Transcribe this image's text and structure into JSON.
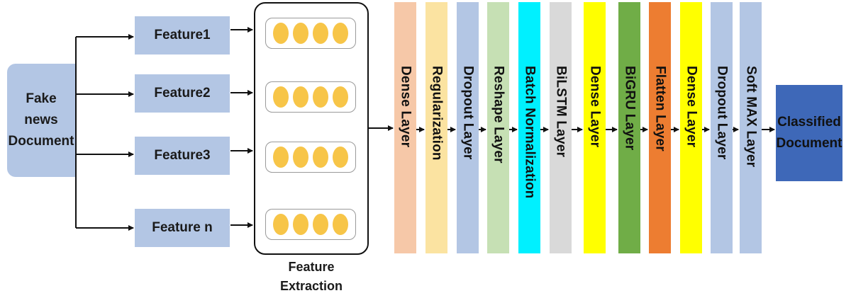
{
  "input": {
    "label_line1": "Fake news",
    "label_line2": "Document"
  },
  "features": [
    {
      "label": "Feature1"
    },
    {
      "label": "Feature2"
    },
    {
      "label": "Feature3"
    },
    {
      "label": "Feature n"
    }
  ],
  "feature_extraction": {
    "label_line1": "Feature",
    "label_line2": "Extraction",
    "dots_per_row": 4
  },
  "layers": [
    {
      "label": "Dense Layer",
      "color": "#f6c8a8"
    },
    {
      "label": "Regularization",
      "color": "#fbe3a1"
    },
    {
      "label": "Dropout Layer",
      "color": "#b3c6e4"
    },
    {
      "label": "Reshape Layer",
      "color": "#c6e0b4"
    },
    {
      "label": "Batch Normalization",
      "color": "#00f0ff"
    },
    {
      "label": "BiLSTM Layer",
      "color": "#d9d9d9"
    },
    {
      "label": "Dense Layer",
      "color": "#ffff00"
    },
    {
      "label": "BiGRU Layer",
      "color": "#70ad47"
    },
    {
      "label": "Flatten Layer",
      "color": "#ed7d31"
    },
    {
      "label": "Dense Layer",
      "color": "#ffff00"
    },
    {
      "label": "Dropout Layer",
      "color": "#b3c6e4"
    },
    {
      "label": "Soft MAX Layer",
      "color": "#b3c6e4"
    }
  ],
  "output": {
    "label_line1": "Classified",
    "label_line2": "Document",
    "color": "#3e68b8"
  },
  "colors": {
    "feature_box": "#b3c6e4",
    "input_box": "#b3c6e4",
    "dot": "#f7c548"
  }
}
